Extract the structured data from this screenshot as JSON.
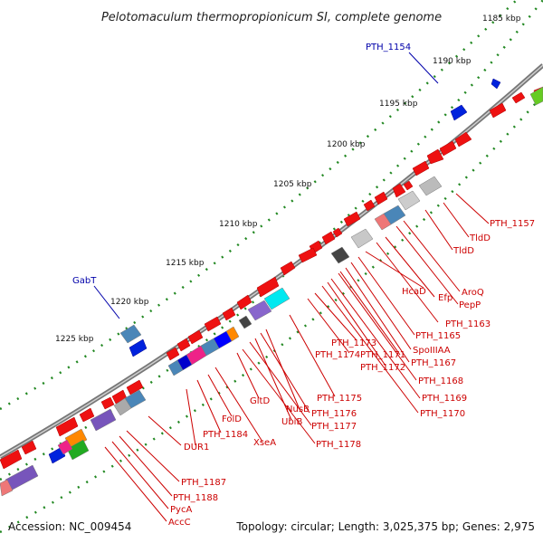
{
  "title": "Pelotomaculum thermopropionicum SI, complete genome",
  "footer": {
    "accession": "Accession: NC_009454",
    "summary": "Topology: circular; Length: 3,025,375 bp; Genes: 2,975"
  },
  "ticks": [
    "1185 kbp",
    "1190 kbp",
    "1195 kbp",
    "1200 kbp",
    "1205 kbp",
    "1210 kbp",
    "1215 kbp",
    "1220 kbp",
    "1225 kbp"
  ],
  "labels_blue": [
    "PTH_1154",
    "GabT"
  ],
  "labels_red": [
    "PTH_1157",
    "TldD",
    "TldD",
    "AroQ",
    "PepP",
    "HcaD",
    "Efp",
    "PTH_1163",
    "PTH_1165",
    "SpoIIIAA",
    "PTH_1167",
    "PTH_1168",
    "PTH_1169",
    "PTH_1170",
    "PTH_1173",
    "PTH_1174",
    "PTH_1171",
    "PTH_1172",
    "PTH_1175",
    "NusB",
    "PTH_1176",
    "UbiB",
    "PTH_1177",
    "PTH_1178",
    "GltD",
    "FolD",
    "PTH_1184",
    "XseA",
    "DUR1",
    "PTH_1187",
    "PTH_1188",
    "PycA",
    "AccC"
  ],
  "colors": {
    "forward_gene": "#ee1111",
    "reverse_gene": "#0022dd",
    "backbone": "#888888",
    "tick_dots": "#228822",
    "red_label": "#cc0000",
    "blue_label": "#0000aa"
  }
}
